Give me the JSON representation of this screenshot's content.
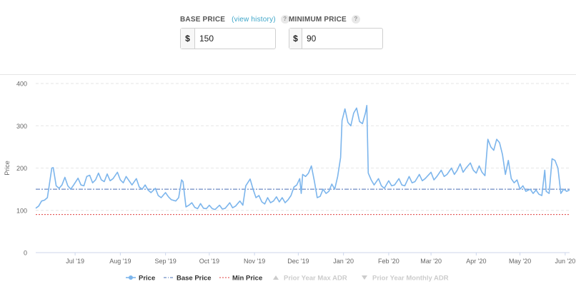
{
  "base_price": {
    "label": "BASE PRICE",
    "history_link": "(view history)",
    "currency": "$",
    "value": "150"
  },
  "min_price": {
    "label": "MINIMUM PRICE",
    "currency": "$",
    "value": "90"
  },
  "help_glyph": "?",
  "chart_data": {
    "type": "line",
    "ylabel": "Price",
    "ylim": [
      0,
      400
    ],
    "yticks": [
      0,
      100,
      200,
      300,
      400
    ],
    "xticks": [
      "Jul '19",
      "Aug '19",
      "Sep '19",
      "Oct '19",
      "Nov '19",
      "Dec '19",
      "Jan '20",
      "Feb '20",
      "Mar '20",
      "Apr '20",
      "May '20",
      "Jun '20"
    ],
    "x_start": "2019-06-04",
    "x_end": "2020-06-04",
    "base_price": 150,
    "min_price": 90,
    "colors": {
      "price": "#7cb5ec",
      "base": "#4a6fb5",
      "min": "#e04040",
      "disabled": "#cccccc",
      "grid": "#e6e6e6"
    },
    "legend": [
      {
        "name": "Price",
        "symbol": "dot-line"
      },
      {
        "name": "Base Price",
        "symbol": "dash-dot"
      },
      {
        "name": "Min Price",
        "symbol": "dotted"
      },
      {
        "name": "Prior Year Max ADR",
        "symbol": "triangle-up",
        "disabled": true
      },
      {
        "name": "Prior Year Monthly ADR",
        "symbol": "triangle-down",
        "disabled": true
      }
    ],
    "series": [
      {
        "name": "Price",
        "points": [
          [
            "2019-06-04",
            105
          ],
          [
            "2019-06-06",
            110
          ],
          [
            "2019-06-08",
            122
          ],
          [
            "2019-06-10",
            124
          ],
          [
            "2019-06-12",
            130
          ],
          [
            "2019-06-15",
            200
          ],
          [
            "2019-06-16",
            201
          ],
          [
            "2019-06-18",
            158
          ],
          [
            "2019-06-20",
            152
          ],
          [
            "2019-06-22",
            160
          ],
          [
            "2019-06-24",
            178
          ],
          [
            "2019-06-26",
            158
          ],
          [
            "2019-06-28",
            150
          ],
          [
            "2019-06-30",
            160
          ],
          [
            "2019-07-03",
            176
          ],
          [
            "2019-07-05",
            160
          ],
          [
            "2019-07-07",
            158
          ],
          [
            "2019-07-09",
            180
          ],
          [
            "2019-07-11",
            183
          ],
          [
            "2019-07-13",
            165
          ],
          [
            "2019-07-15",
            172
          ],
          [
            "2019-07-17",
            188
          ],
          [
            "2019-07-19",
            172
          ],
          [
            "2019-07-21",
            168
          ],
          [
            "2019-07-23",
            186
          ],
          [
            "2019-07-25",
            170
          ],
          [
            "2019-07-27",
            175
          ],
          [
            "2019-07-30",
            190
          ],
          [
            "2019-08-01",
            172
          ],
          [
            "2019-08-03",
            165
          ],
          [
            "2019-08-05",
            180
          ],
          [
            "2019-08-07",
            170
          ],
          [
            "2019-08-09",
            160
          ],
          [
            "2019-08-12",
            175
          ],
          [
            "2019-08-14",
            155
          ],
          [
            "2019-08-16",
            150
          ],
          [
            "2019-08-18",
            160
          ],
          [
            "2019-08-20",
            148
          ],
          [
            "2019-08-22",
            142
          ],
          [
            "2019-08-25",
            152
          ],
          [
            "2019-08-27",
            135
          ],
          [
            "2019-08-29",
            130
          ],
          [
            "2019-09-01",
            142
          ],
          [
            "2019-09-03",
            132
          ],
          [
            "2019-09-05",
            125
          ],
          [
            "2019-09-08",
            122
          ],
          [
            "2019-09-10",
            130
          ],
          [
            "2019-09-12",
            172
          ],
          [
            "2019-09-13",
            168
          ],
          [
            "2019-09-15",
            108
          ],
          [
            "2019-09-17",
            112
          ],
          [
            "2019-09-19",
            118
          ],
          [
            "2019-09-21",
            107
          ],
          [
            "2019-09-23",
            104
          ],
          [
            "2019-09-25",
            116
          ],
          [
            "2019-09-27",
            105
          ],
          [
            "2019-09-29",
            104
          ],
          [
            "2019-10-01",
            112
          ],
          [
            "2019-10-03",
            104
          ],
          [
            "2019-10-05",
            102
          ],
          [
            "2019-10-08",
            112
          ],
          [
            "2019-10-10",
            103
          ],
          [
            "2019-10-12",
            105
          ],
          [
            "2019-10-15",
            118
          ],
          [
            "2019-10-17",
            106
          ],
          [
            "2019-10-19",
            110
          ],
          [
            "2019-10-22",
            122
          ],
          [
            "2019-10-24",
            112
          ],
          [
            "2019-10-26",
            158
          ],
          [
            "2019-10-29",
            174
          ],
          [
            "2019-10-31",
            150
          ],
          [
            "2019-11-02",
            130
          ],
          [
            "2019-11-04",
            135
          ],
          [
            "2019-11-06",
            120
          ],
          [
            "2019-11-08",
            115
          ],
          [
            "2019-11-10",
            130
          ],
          [
            "2019-11-12",
            118
          ],
          [
            "2019-11-14",
            122
          ],
          [
            "2019-11-16",
            132
          ],
          [
            "2019-11-18",
            120
          ],
          [
            "2019-11-20",
            130
          ],
          [
            "2019-11-22",
            118
          ],
          [
            "2019-11-24",
            125
          ],
          [
            "2019-11-26",
            135
          ],
          [
            "2019-11-28",
            155
          ],
          [
            "2019-11-30",
            160
          ],
          [
            "2019-12-02",
            175
          ],
          [
            "2019-12-03",
            140
          ],
          [
            "2019-12-04",
            185
          ],
          [
            "2019-12-06",
            180
          ],
          [
            "2019-12-08",
            188
          ],
          [
            "2019-12-10",
            205
          ],
          [
            "2019-12-12",
            170
          ],
          [
            "2019-12-14",
            130
          ],
          [
            "2019-12-16",
            133
          ],
          [
            "2019-12-18",
            150
          ],
          [
            "2019-12-20",
            140
          ],
          [
            "2019-12-22",
            145
          ],
          [
            "2019-12-24",
            162
          ],
          [
            "2019-12-26",
            150
          ],
          [
            "2019-12-28",
            180
          ],
          [
            "2019-12-30",
            225
          ],
          [
            "2019-12-31",
            312
          ],
          [
            "2020-01-02",
            340
          ],
          [
            "2020-01-04",
            308
          ],
          [
            "2020-01-06",
            300
          ],
          [
            "2020-01-08",
            330
          ],
          [
            "2020-01-10",
            342
          ],
          [
            "2020-01-12",
            310
          ],
          [
            "2020-01-14",
            305
          ],
          [
            "2020-01-16",
            330
          ],
          [
            "2020-01-17",
            348
          ],
          [
            "2020-01-18",
            188
          ],
          [
            "2020-01-20",
            172
          ],
          [
            "2020-01-22",
            160
          ],
          [
            "2020-01-25",
            175
          ],
          [
            "2020-01-27",
            158
          ],
          [
            "2020-01-29",
            152
          ],
          [
            "2020-02-01",
            170
          ],
          [
            "2020-02-03",
            158
          ],
          [
            "2020-02-05",
            160
          ],
          [
            "2020-02-08",
            175
          ],
          [
            "2020-02-10",
            160
          ],
          [
            "2020-02-12",
            158
          ],
          [
            "2020-02-15",
            180
          ],
          [
            "2020-02-17",
            165
          ],
          [
            "2020-02-19",
            168
          ],
          [
            "2020-02-22",
            185
          ],
          [
            "2020-02-24",
            170
          ],
          [
            "2020-02-26",
            175
          ],
          [
            "2020-03-01",
            190
          ],
          [
            "2020-03-03",
            172
          ],
          [
            "2020-03-05",
            180
          ],
          [
            "2020-03-08",
            195
          ],
          [
            "2020-03-10",
            180
          ],
          [
            "2020-03-12",
            185
          ],
          [
            "2020-03-15",
            200
          ],
          [
            "2020-03-17",
            185
          ],
          [
            "2020-03-19",
            195
          ],
          [
            "2020-03-21",
            210
          ],
          [
            "2020-03-23",
            190
          ],
          [
            "2020-03-25",
            200
          ],
          [
            "2020-03-28",
            212
          ],
          [
            "2020-03-30",
            195
          ],
          [
            "2020-04-01",
            188
          ],
          [
            "2020-04-03",
            205
          ],
          [
            "2020-04-05",
            190
          ],
          [
            "2020-04-07",
            182
          ],
          [
            "2020-04-09",
            268
          ],
          [
            "2020-04-11",
            250
          ],
          [
            "2020-04-13",
            242
          ],
          [
            "2020-04-15",
            268
          ],
          [
            "2020-04-17",
            260
          ],
          [
            "2020-04-19",
            232
          ],
          [
            "2020-04-21",
            185
          ],
          [
            "2020-04-23",
            218
          ],
          [
            "2020-04-25",
            175
          ],
          [
            "2020-04-27",
            165
          ],
          [
            "2020-04-29",
            172
          ],
          [
            "2020-05-01",
            150
          ],
          [
            "2020-05-03",
            158
          ],
          [
            "2020-05-05",
            145
          ],
          [
            "2020-05-08",
            150
          ],
          [
            "2020-05-10",
            140
          ],
          [
            "2020-05-12",
            148
          ],
          [
            "2020-05-14",
            138
          ],
          [
            "2020-05-16",
            135
          ],
          [
            "2020-05-18",
            195
          ],
          [
            "2020-05-19",
            145
          ],
          [
            "2020-05-21",
            140
          ],
          [
            "2020-05-23",
            222
          ],
          [
            "2020-05-25",
            218
          ],
          [
            "2020-05-27",
            200
          ],
          [
            "2020-05-29",
            140
          ],
          [
            "2020-05-31",
            150
          ],
          [
            "2020-06-02",
            145
          ],
          [
            "2020-06-04",
            148
          ]
        ]
      }
    ]
  }
}
